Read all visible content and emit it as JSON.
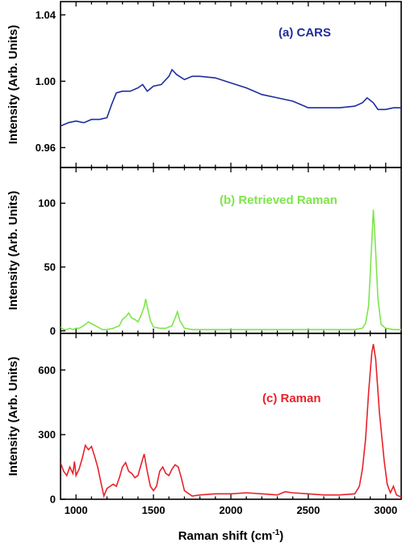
{
  "chart_data": {
    "type": "line",
    "layout": "three vertically stacked panels sharing one x-axis",
    "xlabel": "Raman shift (cm",
    "xlabel_superscript": "-1",
    "xlabel_suffix": ")",
    "xlim": [
      900,
      3100
    ],
    "x_ticks": [
      1000,
      1500,
      2000,
      2500,
      3000
    ],
    "panels": [
      {
        "name": "(a) CARS",
        "color": "#1f2d9c",
        "ylabel": "Intensity (Arb. Units)",
        "ylim": [
          0.948,
          1.048
        ],
        "y_ticks": [
          0.96,
          1.0,
          1.04
        ],
        "y_tick_labels": [
          "0.96",
          "1.00",
          "1.04"
        ],
        "x": [
          900,
          950,
          1000,
          1050,
          1100,
          1150,
          1200,
          1230,
          1260,
          1300,
          1350,
          1400,
          1430,
          1460,
          1500,
          1550,
          1600,
          1620,
          1650,
          1700,
          1750,
          1800,
          1900,
          2000,
          2100,
          2200,
          2300,
          2400,
          2500,
          2600,
          2700,
          2800,
          2850,
          2880,
          2920,
          2950,
          3000,
          3050,
          3100
        ],
        "y": [
          0.973,
          0.975,
          0.976,
          0.975,
          0.977,
          0.977,
          0.978,
          0.986,
          0.993,
          0.994,
          0.994,
          0.996,
          0.998,
          0.994,
          0.997,
          0.998,
          1.003,
          1.007,
          1.004,
          1.001,
          1.003,
          1.003,
          1.002,
          0.999,
          0.996,
          0.992,
          0.99,
          0.988,
          0.984,
          0.984,
          0.984,
          0.985,
          0.987,
          0.99,
          0.987,
          0.983,
          0.983,
          0.984,
          0.984
        ]
      },
      {
        "name": "(b) Retrieved Raman",
        "color": "#7de64a",
        "ylabel": "Intensity (Arb. Units)",
        "ylim": [
          -2,
          128
        ],
        "y_ticks": [
          0,
          50,
          100
        ],
        "y_tick_labels": [
          "0",
          "50",
          "100"
        ],
        "x": [
          900,
          920,
          940,
          960,
          980,
          1000,
          1020,
          1050,
          1080,
          1110,
          1140,
          1170,
          1200,
          1240,
          1280,
          1300,
          1320,
          1340,
          1360,
          1380,
          1400,
          1420,
          1440,
          1450,
          1460,
          1480,
          1500,
          1540,
          1580,
          1620,
          1640,
          1655,
          1670,
          1700,
          1750,
          1800,
          2000,
          2200,
          2400,
          2600,
          2800,
          2850,
          2870,
          2890,
          2910,
          2920,
          2930,
          2950,
          2970,
          3000,
          3050,
          3100
        ],
        "y": [
          3,
          1,
          1,
          2,
          1,
          2,
          2,
          4,
          7,
          5,
          3,
          1,
          1,
          2,
          4,
          9,
          11,
          14,
          10,
          9,
          7,
          12,
          19,
          25,
          19,
          8,
          3,
          2,
          2,
          4,
          10,
          15,
          8,
          2,
          1,
          1,
          1,
          1,
          1,
          1,
          1,
          2,
          6,
          20,
          70,
          95,
          75,
          25,
          5,
          2,
          1,
          1
        ]
      },
      {
        "name": "(c) Raman",
        "color": "#e8222a",
        "ylabel": "Intensity (Arb. Units)",
        "ylim": [
          0,
          770
        ],
        "y_ticks": [
          0,
          300,
          600
        ],
        "y_tick_labels": [
          "0",
          "300",
          "600"
        ],
        "x": [
          900,
          920,
          940,
          960,
          980,
          990,
          1000,
          1020,
          1040,
          1060,
          1080,
          1100,
          1120,
          1140,
          1160,
          1180,
          1200,
          1220,
          1240,
          1260,
          1280,
          1300,
          1320,
          1340,
          1360,
          1380,
          1400,
          1420,
          1440,
          1460,
          1480,
          1500,
          1520,
          1540,
          1560,
          1580,
          1600,
          1620,
          1640,
          1660,
          1680,
          1700,
          1750,
          1800,
          1900,
          2000,
          2100,
          2200,
          2300,
          2350,
          2400,
          2500,
          2600,
          2700,
          2800,
          2830,
          2850,
          2870,
          2890,
          2910,
          2920,
          2935,
          2960,
          2990,
          3010,
          3030,
          3050,
          3070,
          3100
        ],
        "y": [
          170,
          130,
          110,
          150,
          120,
          175,
          110,
          140,
          190,
          250,
          230,
          245,
          200,
          150,
          80,
          15,
          50,
          60,
          70,
          60,
          100,
          150,
          170,
          130,
          120,
          100,
          110,
          160,
          210,
          130,
          60,
          40,
          60,
          130,
          150,
          120,
          110,
          140,
          160,
          150,
          100,
          40,
          15,
          20,
          25,
          25,
          30,
          25,
          20,
          35,
          30,
          25,
          20,
          20,
          25,
          60,
          140,
          280,
          500,
          680,
          720,
          650,
          400,
          180,
          70,
          30,
          60,
          20,
          10
        ]
      }
    ]
  }
}
